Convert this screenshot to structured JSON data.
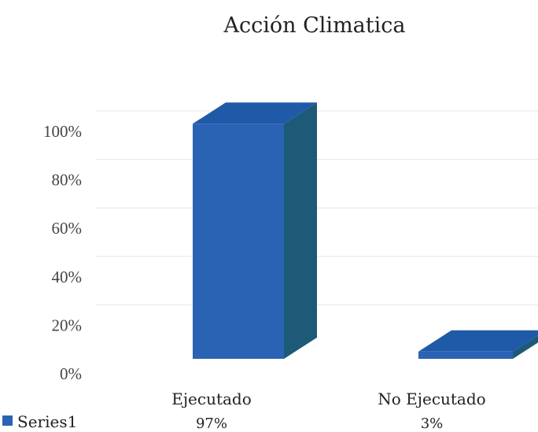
{
  "chart_data": {
    "type": "bar",
    "title": "Acción Climatica",
    "categories": [
      "Ejecutado",
      "No Ejecutado"
    ],
    "series": [
      {
        "name": "Series1",
        "values": [
          97,
          3
        ],
        "labels": [
          "97%",
          "3%"
        ]
      }
    ],
    "ylim": [
      0,
      100
    ],
    "yticks": [
      0,
      20,
      40,
      60,
      80,
      100
    ],
    "ytick_labels": [
      "0%",
      "20%",
      "40%",
      "60%",
      "80%",
      "100%"
    ],
    "grid": true,
    "legend": {
      "placement": "bottom-left",
      "entries": [
        "Series1"
      ]
    },
    "colors": {
      "front": "#2a63b4",
      "top": "#1f5aa8",
      "side": "#1d5a78"
    }
  }
}
